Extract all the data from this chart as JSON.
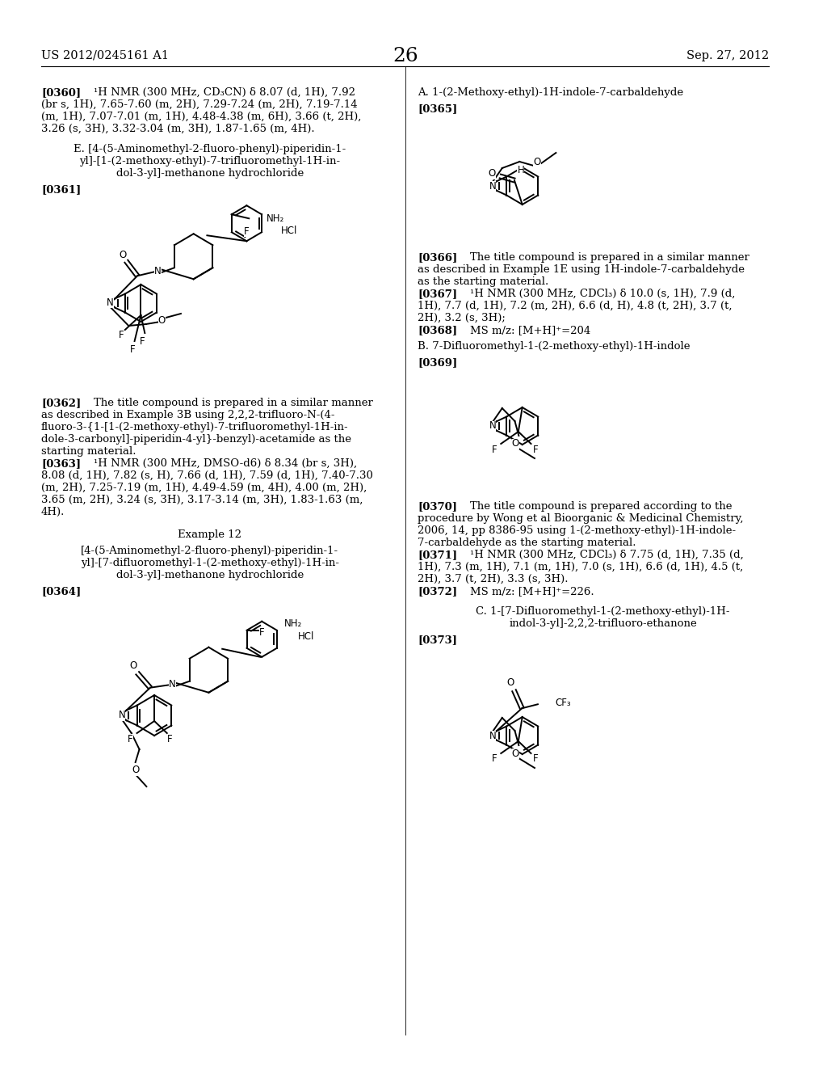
{
  "page_header_left": "US 2012/0245161 A1",
  "page_header_right": "Sep. 27, 2012",
  "page_number": "26",
  "bg": "#ffffff",
  "tc": "#000000"
}
